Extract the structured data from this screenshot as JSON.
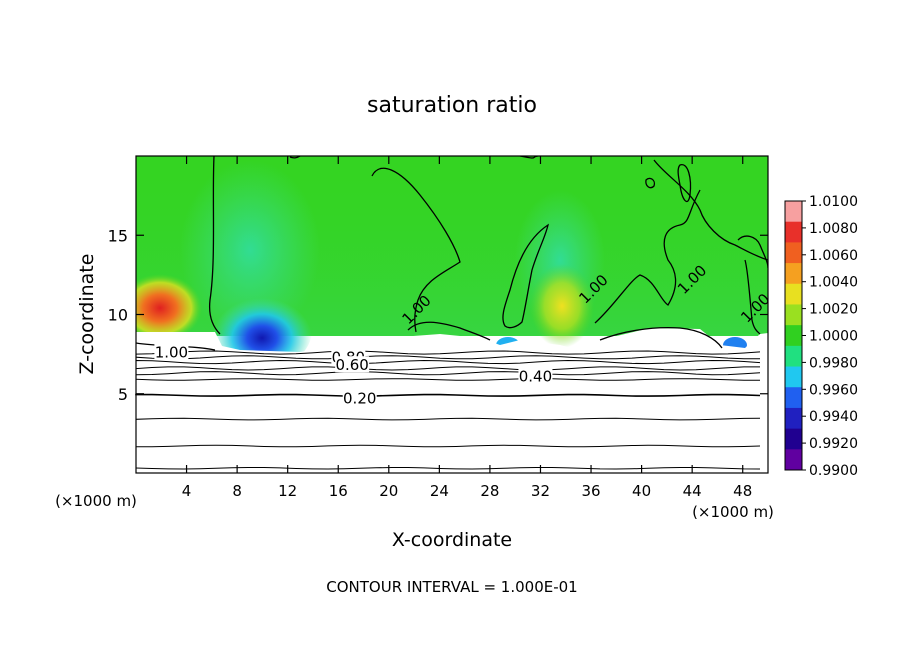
{
  "chart_data": {
    "type": "heatmap",
    "title": "saturation ratio",
    "xlabel": "X-coordinate",
    "ylabel": "Z-coordinate",
    "x_unit_left": "(×1000 m)",
    "x_unit_right": "(×1000 m)",
    "xlim": [
      0,
      50
    ],
    "ylim": [
      0,
      20
    ],
    "x_ticks": [
      4,
      8,
      12,
      16,
      20,
      24,
      28,
      32,
      36,
      40,
      44,
      48
    ],
    "y_ticks": [
      5,
      10,
      15
    ],
    "footer": "CONTOUR INTERVAL = 1.000E-01",
    "colorbar": {
      "min": 0.99,
      "max": 1.01,
      "labels": [
        "1.0100",
        "1.0080",
        "1.0060",
        "1.0040",
        "1.0020",
        "1.0000",
        "0.9980",
        "0.9960",
        "0.9940",
        "0.9920",
        "0.9900"
      ],
      "colors": [
        "#f7a0a0",
        "#e8302a",
        "#f06020",
        "#f5a020",
        "#e8e020",
        "#9ae020",
        "#30d020",
        "#20e080",
        "#20c8f0",
        "#2060f0",
        "#2020c0",
        "#200090",
        "#6000a0"
      ]
    },
    "contour_labels": [
      {
        "text": "1.00",
        "x": 2.8,
        "y": 7.6
      },
      {
        "text": "0.80",
        "x": 16.8,
        "y": 7.3
      },
      {
        "text": "0.60",
        "x": 17.1,
        "y": 6.8
      },
      {
        "text": "0.40",
        "x": 31.6,
        "y": 6.1
      },
      {
        "text": "0.20",
        "x": 17.7,
        "y": 4.7
      },
      {
        "text": "1.00",
        "x": 22.2,
        "y": 10.3
      },
      {
        "text": "1.00",
        "x": 36.2,
        "y": 11.6
      },
      {
        "text": "1.00",
        "x": 44.0,
        "y": 12.2
      },
      {
        "text": "1.00",
        "x": 49.0,
        "y": 10.4
      }
    ],
    "low_levels_z": [
      0.3,
      1.7,
      3.4,
      4.9,
      5.9,
      6.3,
      6.6,
      7.0,
      7.3,
      7.6
    ]
  }
}
